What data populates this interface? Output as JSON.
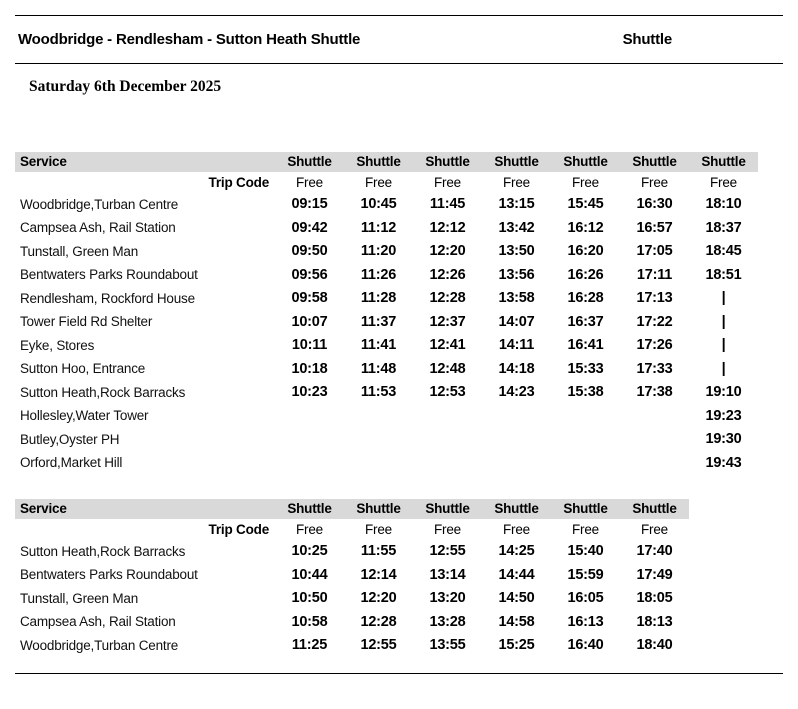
{
  "header": {
    "route_title": "Woodbridge - Rendlesham - Sutton Heath Shuttle",
    "service_label": "Shuttle",
    "date": "Saturday 6th December 2025"
  },
  "tables": [
    {
      "service_header": "Service",
      "trip_code_label": "Trip Code",
      "column_service_names": [
        "Shuttle",
        "Shuttle",
        "Shuttle",
        "Shuttle",
        "Shuttle",
        "Shuttle",
        "Shuttle"
      ],
      "column_trip_codes": [
        "Free",
        "Free",
        "Free",
        "Free",
        "Free",
        "Free",
        "Free"
      ],
      "rows": [
        {
          "stop": "Woodbridge,Turban Centre",
          "times": [
            "09:15",
            "10:45",
            "11:45",
            "13:15",
            "15:45",
            "16:30",
            "18:10"
          ]
        },
        {
          "stop": "Campsea Ash, Rail Station",
          "times": [
            "09:42",
            "11:12",
            "12:12",
            "13:42",
            "16:12",
            "16:57",
            "18:37"
          ]
        },
        {
          "stop": "Tunstall, Green Man",
          "times": [
            "09:50",
            "11:20",
            "12:20",
            "13:50",
            "16:20",
            "17:05",
            "18:45"
          ]
        },
        {
          "stop": "Bentwaters Parks Roundabout",
          "times": [
            "09:56",
            "11:26",
            "12:26",
            "13:56",
            "16:26",
            "17:11",
            "18:51"
          ]
        },
        {
          "stop": "Rendlesham, Rockford House",
          "times": [
            "09:58",
            "11:28",
            "12:28",
            "13:58",
            "16:28",
            "17:13",
            "|"
          ]
        },
        {
          "stop": "Tower Field Rd Shelter",
          "times": [
            "10:07",
            "11:37",
            "12:37",
            "14:07",
            "16:37",
            "17:22",
            "|"
          ]
        },
        {
          "stop": "Eyke, Stores",
          "times": [
            "10:11",
            "11:41",
            "12:41",
            "14:11",
            "16:41",
            "17:26",
            "|"
          ]
        },
        {
          "stop": "Sutton Hoo, Entrance",
          "times": [
            "10:18",
            "11:48",
            "12:48",
            "14:18",
            "15:33",
            "17:33",
            "|"
          ]
        },
        {
          "stop": "Sutton Heath,Rock Barracks",
          "times": [
            "10:23",
            "11:53",
            "12:53",
            "14:23",
            "15:38",
            "17:38",
            "19:10"
          ]
        },
        {
          "stop": "Hollesley,Water Tower",
          "times": [
            "",
            "",
            "",
            "",
            "",
            "",
            "19:23"
          ]
        },
        {
          "stop": "Butley,Oyster PH",
          "times": [
            "",
            "",
            "",
            "",
            "",
            "",
            "19:30"
          ]
        },
        {
          "stop": "Orford,Market Hill",
          "times": [
            "",
            "",
            "",
            "",
            "",
            "",
            "19:43"
          ]
        }
      ]
    },
    {
      "service_header": "Service",
      "trip_code_label": "Trip Code",
      "column_service_names": [
        "Shuttle",
        "Shuttle",
        "Shuttle",
        "Shuttle",
        "Shuttle",
        "Shuttle"
      ],
      "column_trip_codes": [
        "Free",
        "Free",
        "Free",
        "Free",
        "Free",
        "Free"
      ],
      "rows": [
        {
          "stop": "Sutton Heath,Rock Barracks",
          "times": [
            "10:25",
            "11:55",
            "12:55",
            "14:25",
            "15:40",
            "17:40"
          ]
        },
        {
          "stop": "Bentwaters Parks Roundabout",
          "times": [
            "10:44",
            "12:14",
            "13:14",
            "14:44",
            "15:59",
            "17:49"
          ]
        },
        {
          "stop": "Tunstall, Green Man",
          "times": [
            "10:50",
            "12:20",
            "13:20",
            "14:50",
            "16:05",
            "18:05"
          ]
        },
        {
          "stop": "Campsea Ash, Rail Station",
          "times": [
            "10:58",
            "12:28",
            "13:28",
            "14:58",
            "16:13",
            "18:13"
          ]
        },
        {
          "stop": "Woodbridge,Turban Centre",
          "times": [
            "11:25",
            "12:55",
            "13:55",
            "15:25",
            "16:40",
            "18:40"
          ]
        }
      ]
    }
  ],
  "colors": {
    "header_band": "#d9d9d9",
    "rule": "#000000",
    "text": "#111111"
  }
}
